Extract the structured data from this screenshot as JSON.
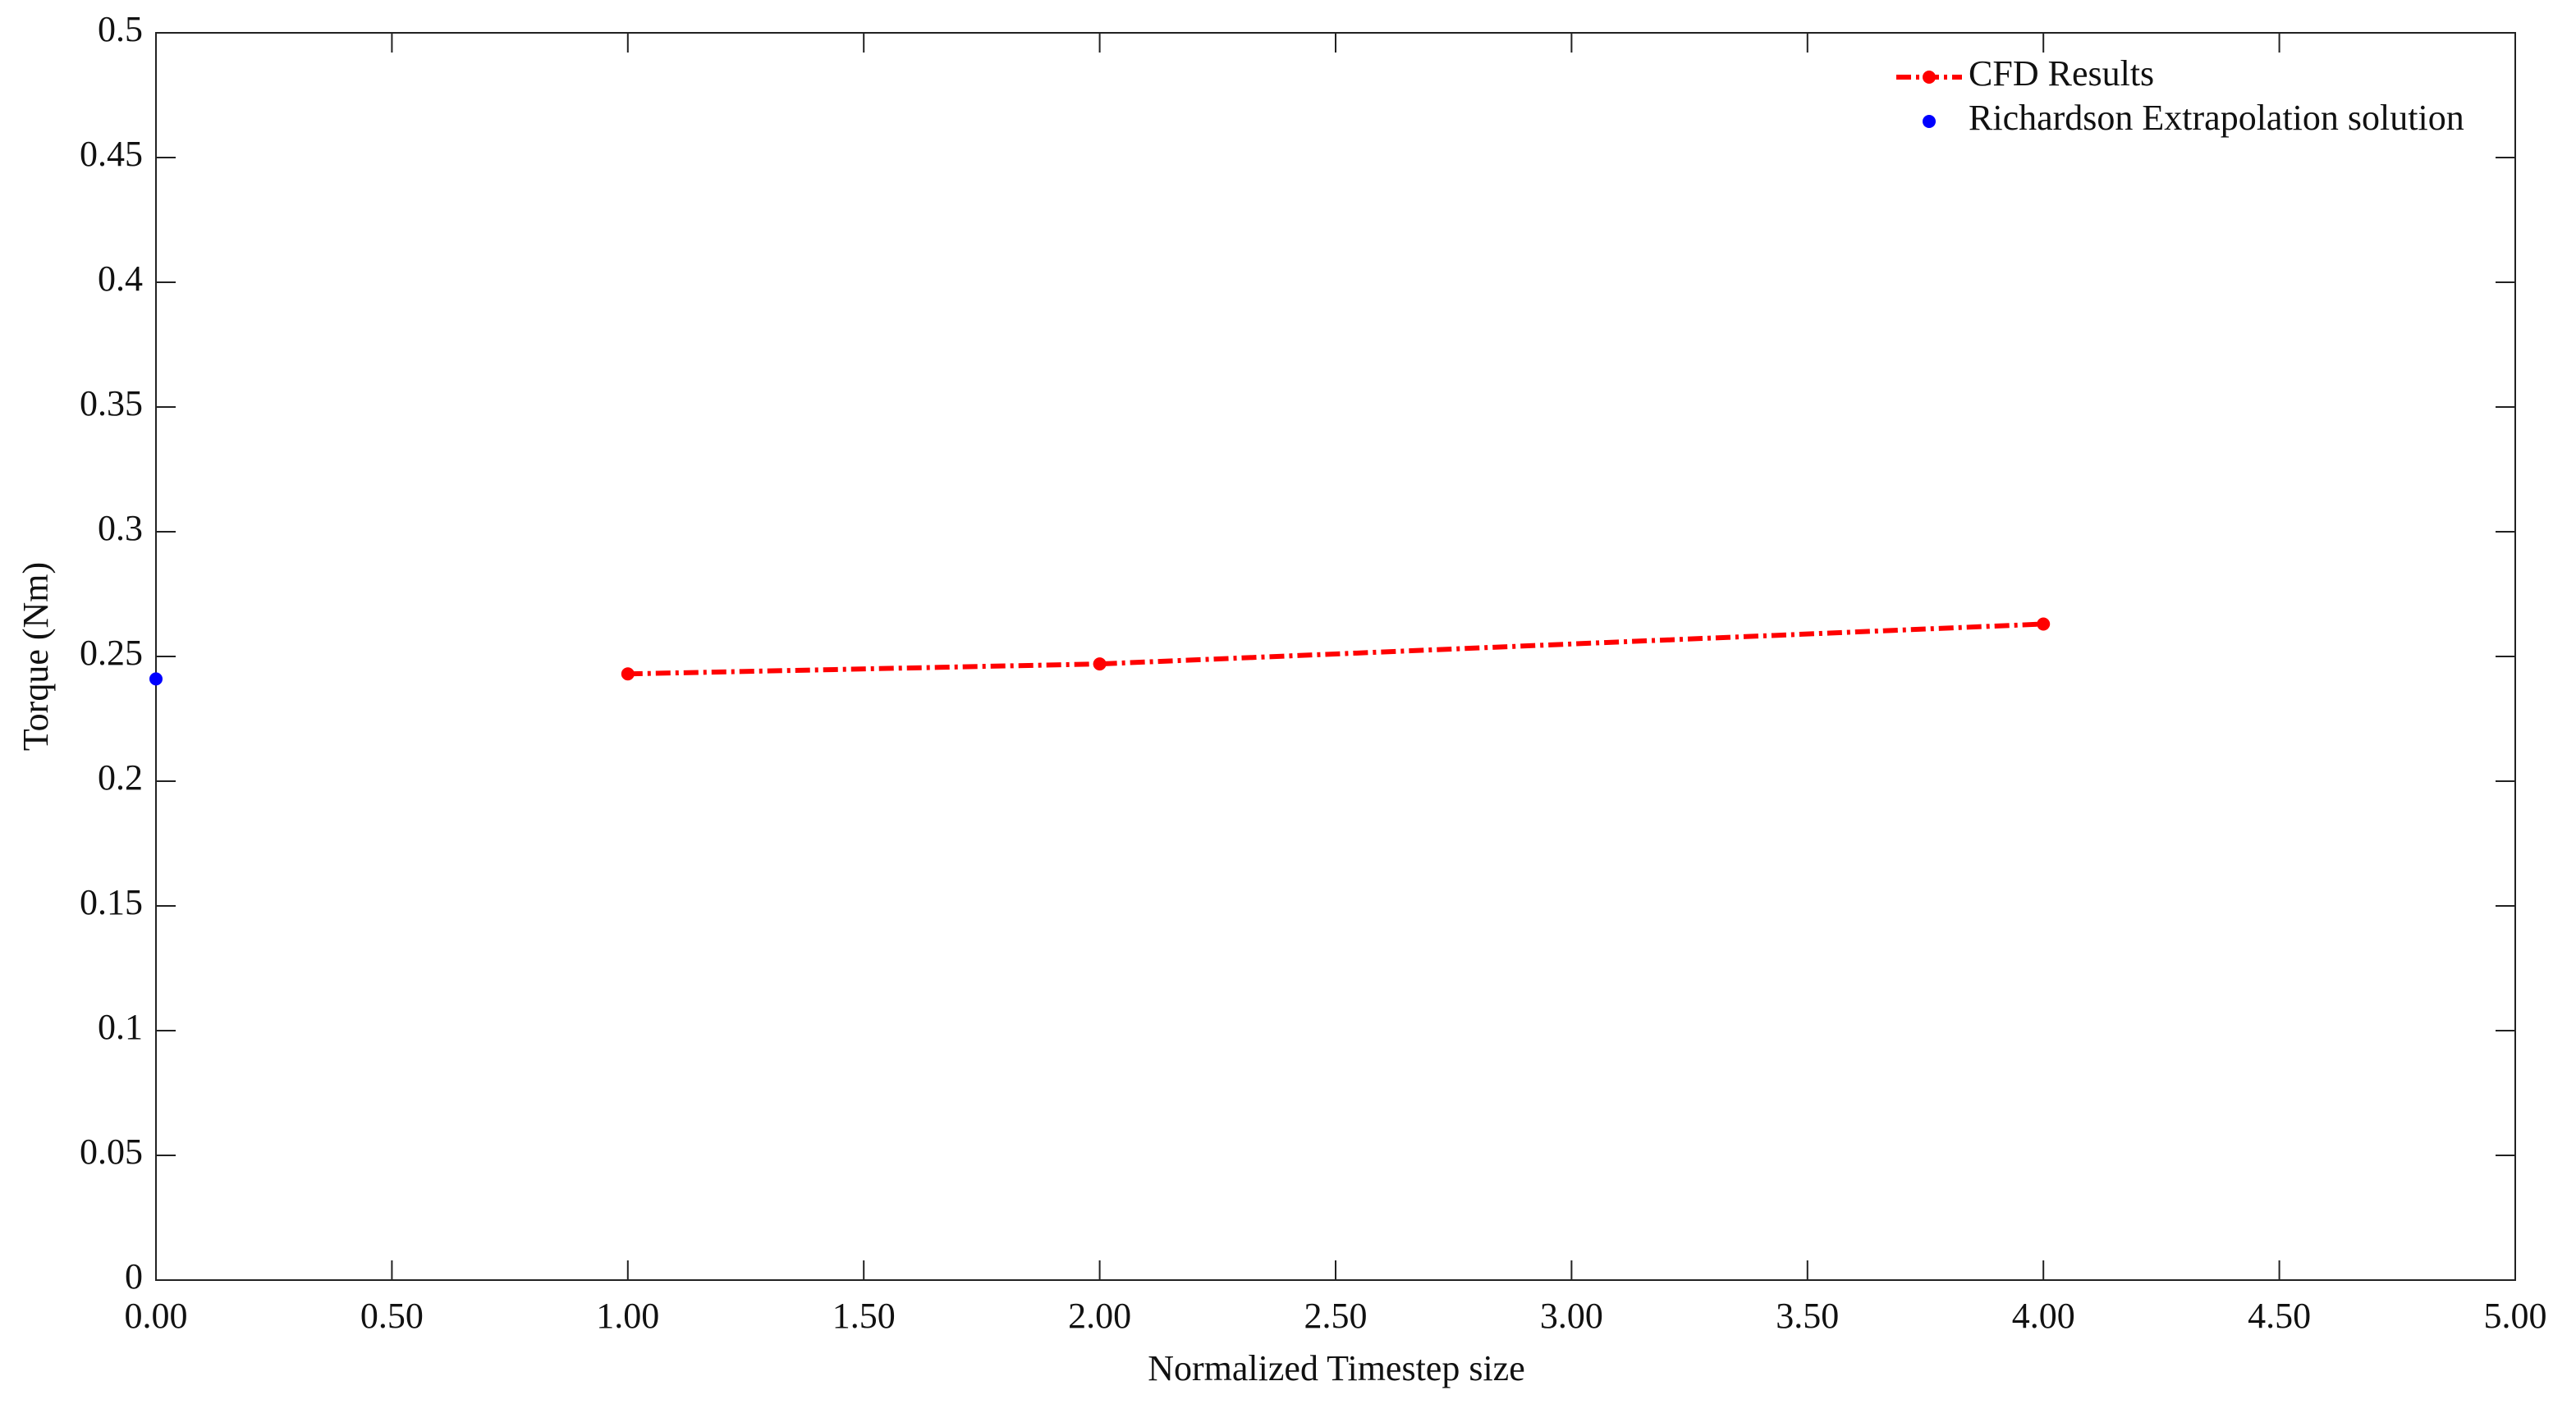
{
  "chart_data": {
    "type": "line",
    "xlabel": "Normalized Timestep size",
    "ylabel": "Torque (Nm)",
    "xlim": [
      0,
      5
    ],
    "ylim": [
      0,
      0.5
    ],
    "xticks": [
      {
        "value": 0,
        "label": "0.00"
      },
      {
        "value": 0.5,
        "label": "0.50"
      },
      {
        "value": 1,
        "label": "1.00"
      },
      {
        "value": 1.5,
        "label": "1.50"
      },
      {
        "value": 2,
        "label": "2.00"
      },
      {
        "value": 2.5,
        "label": "2.50"
      },
      {
        "value": 3,
        "label": "3.00"
      },
      {
        "value": 3.5,
        "label": "3.50"
      },
      {
        "value": 4,
        "label": "4.00"
      },
      {
        "value": 4.5,
        "label": "4.50"
      },
      {
        "value": 5,
        "label": "5.00"
      }
    ],
    "yticks": [
      0,
      0.05,
      0.1,
      0.15,
      0.2,
      0.25,
      0.3,
      0.35,
      0.4,
      0.45,
      0.5
    ],
    "grid": false,
    "legend": "upper right",
    "series": [
      {
        "name": "CFD Results",
        "color": "#ff0000",
        "linestyle": "dashdot",
        "x": [
          1,
          2,
          4
        ],
        "values": [
          0.243,
          0.247,
          0.263
        ]
      },
      {
        "name": "Richardson Extrapolation solution",
        "color": "#0000ff",
        "linestyle": "none",
        "x": [
          0
        ],
        "values": [
          0.241
        ]
      }
    ]
  }
}
